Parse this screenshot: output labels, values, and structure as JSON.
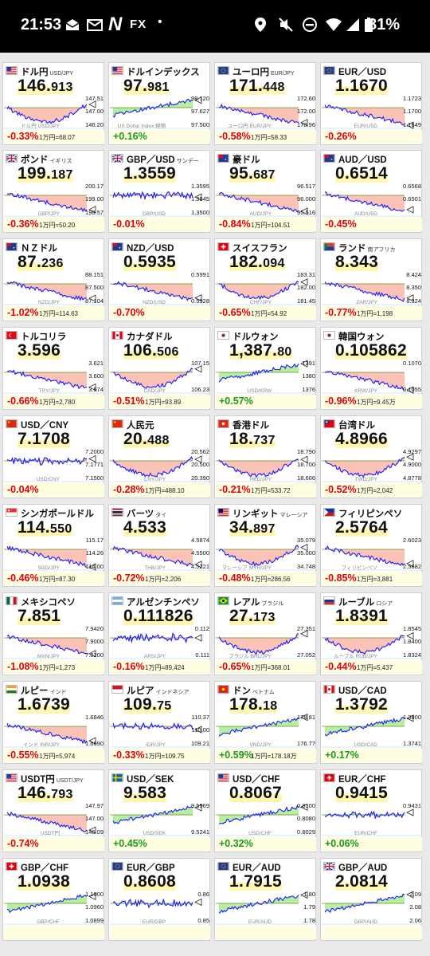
{
  "status_bar": {
    "time": "21:53",
    "app_label": "FX",
    "app_letter": "N",
    "dot": "•",
    "battery": "81%"
  },
  "cards": [
    {
      "flag": "us",
      "name": "ドル円",
      "sub": "USD/JPY",
      "price_main": "146.",
      "price_small": "913",
      "hi": "147.51",
      "mid": "147.00",
      "lo": "146.20",
      "change": "-0.33%",
      "unit": "1万円=68.07",
      "trend": "v",
      "wm": "ドル円 USD/JPY"
    },
    {
      "flag": "us",
      "name": "ドルインデックス",
      "sub": "",
      "price_main": "97.",
      "price_small": "981",
      "hi": "98.120",
      "mid": "97.627",
      "lo": "97.500",
      "change": "+0.16%",
      "unit": "",
      "trend": "up",
      "wm": "US Dollar Index 現物"
    },
    {
      "flag": "eu",
      "name": "ユーロ円",
      "sub": "EUR/JPY",
      "price_main": "171.",
      "price_small": "448",
      "hi": "172.60",
      "mid": "172.00",
      "lo": "170.96",
      "change": "-0.58%",
      "unit": "1万円=58.33",
      "trend": "down",
      "wm": "ユーロ円 EUR/JPY"
    },
    {
      "flag": "eu",
      "name": "EUR／USD",
      "sub": "",
      "price_main": "1.1670",
      "price_small": "",
      "hi": "1.1723",
      "mid": "1.1700",
      "lo": "1.1649",
      "change": "-0.26%",
      "unit": "",
      "trend": "down",
      "wm": "EUR/USD"
    },
    {
      "flag": "gb",
      "name": "ポンド",
      "sub": "イギリス",
      "price_main": "199.",
      "price_small": "187",
      "hi": "200.17",
      "mid": "199.00",
      "lo": "198.57",
      "change": "-0.36%",
      "unit": "1万円=50.20",
      "trend": "down",
      "wm": "GBP/JPY"
    },
    {
      "flag": "gb",
      "name": "GBP／USD",
      "sub": "サンデー",
      "price_main": "1.3559",
      "price_small": "",
      "hi": "1.3595",
      "mid": "1.3545",
      "lo": "1.3500",
      "change": "-0.01%",
      "unit": "",
      "trend": "flat",
      "wm": "GBP/USD"
    },
    {
      "flag": "au",
      "name": "豪ドル",
      "sub": "",
      "price_main": "95.",
      "price_small": "687",
      "hi": "96.517",
      "mid": "96.000",
      "lo": "95.516",
      "change": "-0.84%",
      "unit": "1万円=104.51",
      "trend": "down",
      "wm": "AUD/JPY"
    },
    {
      "flag": "au",
      "name": "AUD／USD",
      "sub": "",
      "price_main": "0.6514",
      "price_small": "",
      "hi": "0.6568",
      "mid": "0.6501",
      "lo": "",
      "change": "-0.45%",
      "unit": "",
      "trend": "down",
      "wm": "AUD/USD"
    },
    {
      "flag": "nz",
      "name": "ＮＺドル",
      "sub": "",
      "price_main": "87.",
      "price_small": "236",
      "hi": "88.151",
      "mid": "87.500",
      "lo": "87.104",
      "change": "-1.02%",
      "unit": "1万円=114.63",
      "trend": "down",
      "wm": "NZD/JPY"
    },
    {
      "flag": "nz",
      "name": "NZD／USD",
      "sub": "",
      "price_main": "0.5935",
      "price_small": "",
      "hi": "0.5991",
      "mid": "",
      "lo": "0.5928",
      "change": "-0.70%",
      "unit": "",
      "trend": "down",
      "wm": "NZD/USD"
    },
    {
      "flag": "ch",
      "name": "スイスフラン",
      "sub": "",
      "price_main": "182.",
      "price_small": "094",
      "hi": "183.31",
      "mid": "182.00",
      "lo": "181.45",
      "change": "-0.65%",
      "unit": "1万円=54.92",
      "trend": "v",
      "wm": "CHF/JPY"
    },
    {
      "flag": "za",
      "name": "ランド",
      "sub": "南アフリカ",
      "price_main": "8.343",
      "price_small": "",
      "hi": "8.424",
      "mid": "8.350",
      "lo": "8.324",
      "change": "-0.77%",
      "unit": "1万円=1,198",
      "trend": "down",
      "wm": "ZAR/JPY"
    },
    {
      "flag": "tr",
      "name": "トルコリラ",
      "sub": "",
      "price_main": "3.596",
      "price_small": "",
      "hi": "3.621",
      "mid": "3.600",
      "lo": "3.574",
      "change": "-0.66%",
      "unit": "1万円=2,780",
      "trend": "down",
      "wm": "TRY/JPY"
    },
    {
      "flag": "ca",
      "name": "カナダドル",
      "sub": "",
      "price_main": "106.",
      "price_small": "506",
      "hi": "107.15",
      "mid": "",
      "lo": "106.23",
      "change": "-0.51%",
      "unit": "1万円=93.89",
      "trend": "v",
      "wm": "CAD/JPY"
    },
    {
      "flag": "kr",
      "name": "ドルウォン",
      "sub": "",
      "price_main": "1,387.",
      "price_small": "80",
      "hi": "1391",
      "mid": "1380",
      "lo": "1376",
      "change": "+0.57%",
      "unit": "",
      "trend": "up",
      "wm": "USD/KRW"
    },
    {
      "flag": "kr",
      "name": "韓国ウォン",
      "sub": "",
      "price_main": "0.105862",
      "price_small": "",
      "hi": "0.1070",
      "mid": "",
      "lo": "0.1055",
      "change": "-0.96%",
      "unit": "1万円=9.45万",
      "trend": "down",
      "wm": "KRW/JPY"
    },
    {
      "flag": "cn",
      "name": "USD／CNY",
      "sub": "",
      "price_main": "7.1708",
      "price_small": "",
      "hi": "7.2000",
      "mid": "7.1771",
      "lo": "7.1500",
      "change": "-0.04%",
      "unit": "",
      "trend": "flat",
      "wm": "USD/CNY"
    },
    {
      "flag": "cn",
      "name": "人民元",
      "sub": "",
      "price_main": "20.",
      "price_small": "488",
      "hi": "20.562",
      "mid": "20.500",
      "lo": "20.390",
      "change": "-0.28%",
      "unit": "1万円=488.10",
      "trend": "v",
      "wm": "CNY/JPY"
    },
    {
      "flag": "hk",
      "name": "香港ドル",
      "sub": "",
      "price_main": "18.",
      "price_small": "737",
      "hi": "18.790",
      "mid": "18.700",
      "lo": "18.606",
      "change": "-0.21%",
      "unit": "1万円=533.72",
      "trend": "v",
      "wm": "HKD/JPY"
    },
    {
      "flag": "tw",
      "name": "台湾ドル",
      "sub": "",
      "price_main": "4.8966",
      "price_small": "",
      "hi": "4.9297",
      "mid": "4.9000",
      "lo": "4.8778",
      "change": "-0.52%",
      "unit": "1万円=2,042",
      "trend": "v",
      "wm": "TWD/JPY"
    },
    {
      "flag": "sg",
      "name": "シンガポールドル",
      "sub": "",
      "price_main": "114.",
      "price_small": "550",
      "hi": "115.17",
      "mid": "114.26",
      "lo": "114.00",
      "change": "-0.46%",
      "unit": "1万円=87.30",
      "trend": "down",
      "wm": "SGD/JPY"
    },
    {
      "flag": "th",
      "name": "バーツ",
      "sub": "タイ",
      "price_main": "4.533",
      "price_small": "",
      "hi": "4.5874",
      "mid": "4.5500",
      "lo": "4.5221",
      "change": "-0.72%",
      "unit": "1万円=2,206",
      "trend": "down",
      "wm": "THB/JPY"
    },
    {
      "flag": "my",
      "name": "リンギット",
      "sub": "マレーシア",
      "price_main": "34.",
      "price_small": "897",
      "hi": "35.079",
      "mid": "35.000",
      "lo": "34.748",
      "change": "-0.48%",
      "unit": "1万円=286.56",
      "trend": "v",
      "wm": "マレーシア MYR/JPY"
    },
    {
      "flag": "ph",
      "name": "フィリピンペソ",
      "sub": "",
      "price_main": "2.5764",
      "price_small": "",
      "hi": "2.6023",
      "mid": "",
      "lo": "2.5682",
      "change": "-0.85%",
      "unit": "1万円=3,881",
      "trend": "down",
      "wm": "フィリピンペソ"
    },
    {
      "flag": "mx",
      "name": "メキシコペソ",
      "sub": "",
      "price_main": "7.851",
      "price_small": "",
      "hi": "7.9420",
      "mid": "7.9000",
      "lo": "7.8200",
      "change": "-1.08%",
      "unit": "1万円=1,273",
      "trend": "down",
      "wm": "MXN/JPY"
    },
    {
      "flag": "ar",
      "name": "アルゼンチンペソ",
      "sub": "",
      "price_main": "0.111826",
      "price_small": "",
      "hi": "0.112",
      "mid": "",
      "lo": "0.111",
      "change": "-0.16%",
      "unit": "1万円=89,424",
      "trend": "flat",
      "wm": "ARS/JPY"
    },
    {
      "flag": "br",
      "name": "レアル",
      "sub": "ブラジル",
      "price_main": "27.",
      "price_small": "173",
      "hi": "27.351",
      "mid": "",
      "lo": "27.052",
      "change": "-0.65%",
      "unit": "1万円=368.01",
      "trend": "v",
      "wm": "ブラジル BRL/JPY"
    },
    {
      "flag": "ru",
      "name": "ルーブル",
      "sub": "ロシア",
      "price_main": "1.8391",
      "price_small": "",
      "hi": "1.8545",
      "mid": "1.8400",
      "lo": "1.8324",
      "change": "-0.44%",
      "unit": "1万円=5,437",
      "trend": "v",
      "wm": "ルーブル RUB/JPY"
    },
    {
      "flag": "in",
      "name": "ルピー",
      "sub": "インド",
      "price_main": "1.6739",
      "price_small": "",
      "hi": "1.6846",
      "mid": "",
      "lo": "1.6690",
      "change": "-0.55%",
      "unit": "1万円=5,974",
      "trend": "down",
      "wm": "インド INR/JPY"
    },
    {
      "flag": "id",
      "name": "ルピア",
      "sub": "インドネシア",
      "price_main": "109.",
      "price_small": "75",
      "hi": "110.37",
      "mid": "110.00",
      "lo": "109.21",
      "change": "-0.33%",
      "unit": "1万円=109.75",
      "trend": "flat",
      "wm": "IDR/JPY"
    },
    {
      "flag": "vn",
      "name": "ドン",
      "sub": "ベトナム",
      "price_main": "178.",
      "price_small": "18",
      "hi": "178.81",
      "mid": "",
      "lo": "176.77",
      "change": "+0.59%",
      "unit": "1万円=178.18万",
      "trend": "up",
      "wm": "VND/JPY"
    },
    {
      "flag": "ca",
      "name": "USD／CAD",
      "sub": "",
      "price_main": "1.3792",
      "price_small": "",
      "hi": "1.3800",
      "mid": "",
      "lo": "1.3741",
      "change": "+0.17%",
      "unit": "",
      "trend": "up",
      "wm": "USD/CAD"
    },
    {
      "flag": "us",
      "name": "USDT円",
      "sub": "USDT/JPY",
      "price_main": "146.",
      "price_small": "793",
      "hi": "147.97",
      "mid": "147.00",
      "lo": "146.09",
      "change": "-0.74%",
      "unit": "",
      "trend": "down",
      "wm": "USDT円"
    },
    {
      "flag": "se",
      "name": "USD／SEK",
      "sub": "",
      "price_main": "9.583",
      "price_small": "",
      "hi": "9.5969",
      "mid": "",
      "lo": "9.5241",
      "change": "+0.45%",
      "unit": "",
      "trend": "up",
      "wm": "USD/SEK"
    },
    {
      "flag": "us",
      "name": "USD／CHF",
      "sub": "",
      "price_main": "0.8067",
      "price_small": "",
      "hi": "0.8100",
      "mid": "0.8080",
      "lo": "0.8029",
      "change": "+0.32%",
      "unit": "",
      "trend": "up",
      "wm": "USD/CHF"
    },
    {
      "flag": "ch",
      "name": "EUR／CHF",
      "sub": "",
      "price_main": "0.9415",
      "price_small": "",
      "hi": "0.9431",
      "mid": "",
      "lo": "",
      "change": "+0.06%",
      "unit": "",
      "trend": "flat",
      "wm": "EUR/CHF"
    },
    {
      "flag": "ch",
      "name": "GBP／CHF",
      "sub": "",
      "price_main": "1.0938",
      "price_small": "",
      "hi": "1.1000",
      "mid": "1.0960",
      "lo": "1.0899",
      "change": "",
      "unit": "",
      "trend": "up",
      "wm": "GBP/CHF"
    },
    {
      "flag": "eu",
      "name": "EUR／GBP",
      "sub": "",
      "price_main": "0.8608",
      "price_small": "",
      "hi": "0.86",
      "mid": "",
      "lo": "0.85",
      "change": "",
      "unit": "",
      "trend": "flat",
      "wm": "EUR/GBP"
    },
    {
      "flag": "eu",
      "name": "EUR／AUD",
      "sub": "",
      "price_main": "1.7915",
      "price_small": "",
      "hi": "1.80",
      "mid": "1.79",
      "lo": "1.78",
      "change": "",
      "unit": "",
      "trend": "up",
      "wm": "EUR/AUD"
    },
    {
      "flag": "gb",
      "name": "GBP／AUD",
      "sub": "",
      "price_main": "2.0814",
      "price_small": "",
      "hi": "2.09",
      "mid": "2.08",
      "lo": "2.06",
      "change": "",
      "unit": "",
      "trend": "up",
      "wm": "GBP/AUD"
    }
  ],
  "colors": {
    "neg": "#e2000f",
    "pos": "#1a9a1a",
    "fill_neg": "#f9b9a8",
    "fill_pos": "#a9ec8c",
    "line": "#1a1aff",
    "footer": "#fffde0"
  }
}
